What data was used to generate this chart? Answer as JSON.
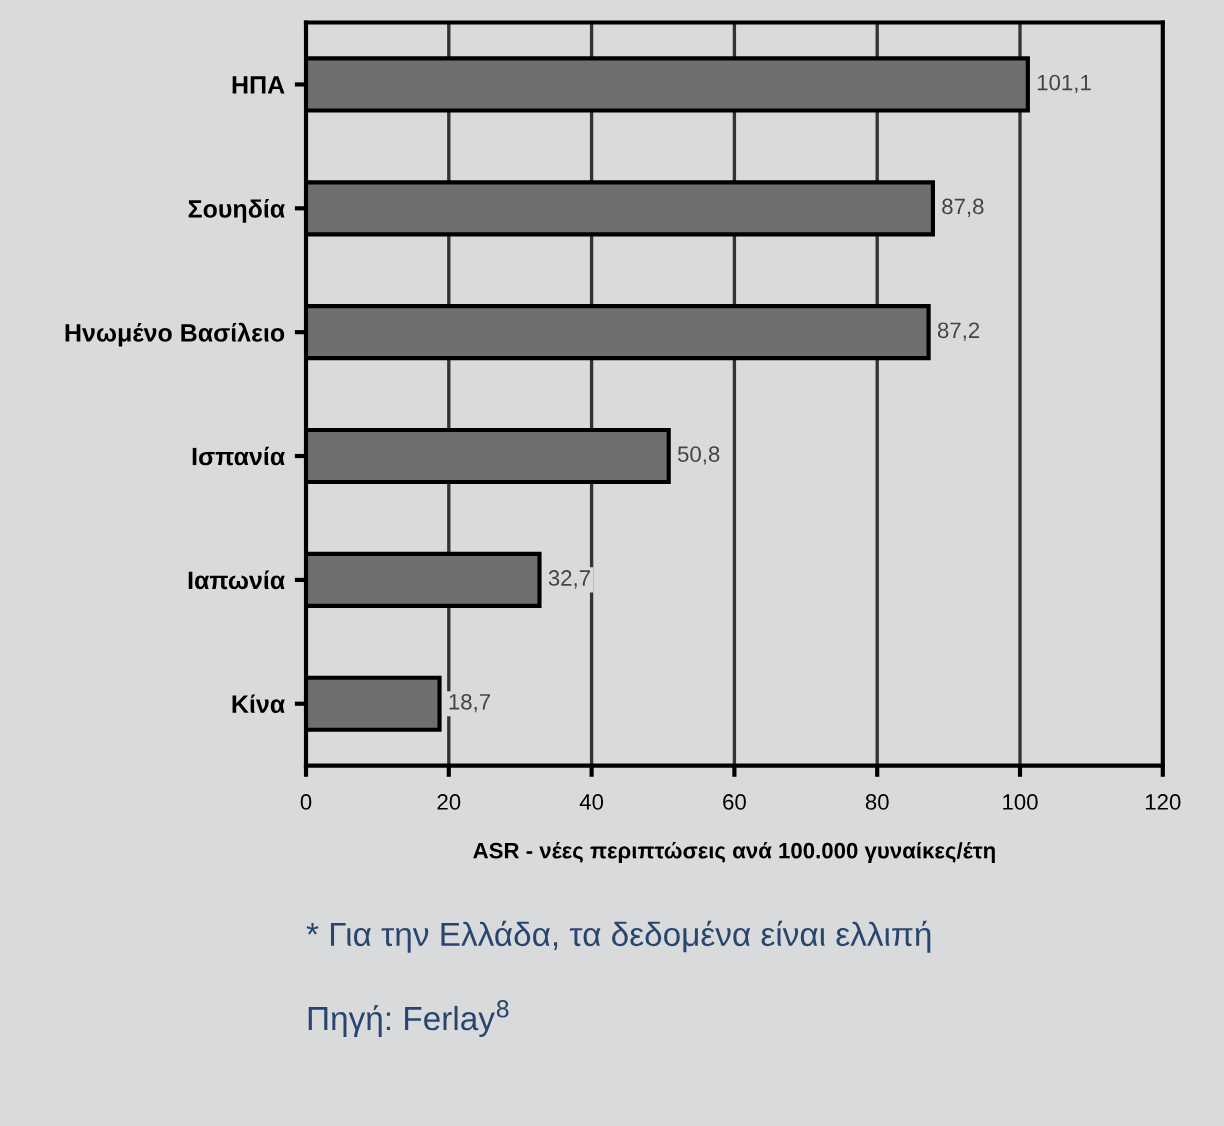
{
  "chart_data": {
    "type": "bar",
    "orientation": "horizontal",
    "categories": [
      "ΗΠΑ",
      "Σουηδία",
      "Ηνωμένο Βασίλειο",
      "Ισπανία",
      "Ιαπωνία",
      "Κίνα"
    ],
    "values": [
      101.1,
      87.8,
      87.2,
      50.8,
      32.7,
      18.7
    ],
    "value_labels": [
      "101,1",
      "87,8",
      "87,2",
      "50,8",
      "32,7",
      "18,7"
    ],
    "color": "#6e6f71",
    "xlabel": "ASR - νέες περιπτώσεις ανά 100.000 γυναίκες/έτη",
    "xlim": [
      0,
      120
    ],
    "xticks": [
      0,
      20,
      40,
      60,
      80,
      100,
      120
    ],
    "grid": "x",
    "annotations": [
      "* Για την Ελλάδα, τα δεδομένα είναι ελλιπή",
      "Πηγή: Ferlay$^{8}$"
    ]
  }
}
